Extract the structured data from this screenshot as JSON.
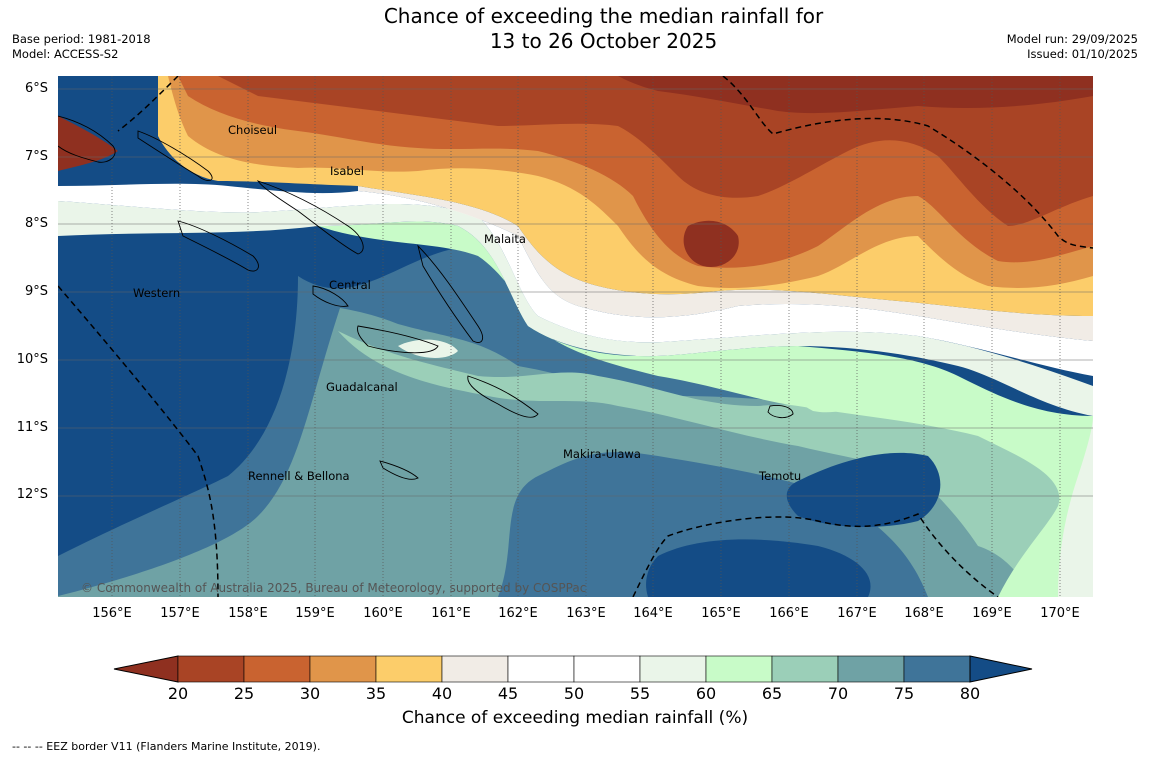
{
  "title": {
    "line1": "Chance of exceeding the median rainfall for",
    "line2": "13 to 26 October 2025"
  },
  "meta_left": {
    "base_period": "Base period: 1981-2018",
    "model": "Model: ACCESS-S2"
  },
  "meta_right": {
    "model_run": "Model run: 29/09/2025",
    "issued": "Issued: 01/10/2025"
  },
  "lat_labels": [
    "6°S",
    "7°S",
    "8°S",
    "9°S",
    "10°S",
    "11°S",
    "12°S"
  ],
  "lon_labels": [
    "156°E",
    "157°E",
    "158°E",
    "159°E",
    "160°E",
    "161°E",
    "162°E",
    "163°E",
    "164°E",
    "165°E",
    "166°E",
    "167°E",
    "168°E",
    "169°E",
    "170°E"
  ],
  "places": [
    "Choiseul",
    "Isabel",
    "Malaita",
    "Central",
    "Western",
    "Guadalcanal",
    "Makira-Ulawa",
    "Temotu",
    "Rennell & Bellona"
  ],
  "copyright": "© Commonwealth of Australia 2025, Bureau of Meteorology, supported by COSPPac",
  "colorbar": {
    "ticks": [
      "20",
      "25",
      "30",
      "35",
      "40",
      "45",
      "50",
      "55",
      "60",
      "65",
      "70",
      "75",
      "80"
    ],
    "colors": [
      "#a94425",
      "#c96330",
      "#e0954a",
      "#fccd6a",
      "#f1ece6",
      "#ffffff",
      "#ffffff",
      "#eaf5e9",
      "#c8fbc8",
      "#9bcfb8",
      "#6fa2a5",
      "#3f7499"
    ],
    "under_color": "#8f3020",
    "over_color": "#144c86",
    "title": "Chance of exceeding median rainfall (%)"
  },
  "footnote": "--  --  -- EEZ border V11 (Flanders Marine Institute, 2019)."
}
